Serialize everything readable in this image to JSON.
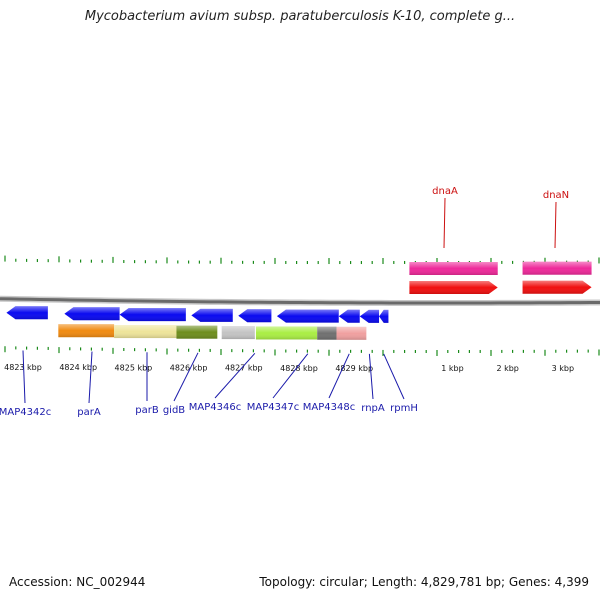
{
  "title": "Mycobacterium avium subsp. paratuberculosis K-10, complete g...",
  "footer": {
    "accession": "Accession: NC_002944",
    "summary": "Topology: circular; Length: 4,829,781 bp; Genes: 4,399"
  },
  "scale_labels": [
    {
      "label": "4823 kbp",
      "kbp": 4823
    },
    {
      "label": "4824 kbp",
      "kbp": 4824
    },
    {
      "label": "4825 kbp",
      "kbp": 4825
    },
    {
      "label": "4826 kbp",
      "kbp": 4826
    },
    {
      "label": "4827 kbp",
      "kbp": 4827
    },
    {
      "label": "4828 kbp",
      "kbp": 4828
    },
    {
      "label": "4829 kbp",
      "kbp": 4829
    },
    {
      "label": "1 kbp",
      "kbp": 4830.78
    },
    {
      "label": "2 kbp",
      "kbp": 4831.78
    },
    {
      "label": "3 kbp",
      "kbp": 4832.78
    }
  ],
  "genes_reverse": [
    {
      "label": "MAP4342c",
      "start": 4822.7,
      "end": 4823.45
    },
    {
      "label": "parA",
      "start": 4823.75,
      "end": 4824.75
    },
    {
      "label": "parB",
      "start": 4824.75,
      "end": 4825.95
    },
    {
      "label": "gidB",
      "start": 4826.05,
      "end": 4826.8
    },
    {
      "label": "MAP4346c",
      "start": 4826.9,
      "end": 4827.5
    },
    {
      "label": "MAP4347c",
      "start": 4827.6,
      "end": 4828.72
    },
    {
      "label": "MAP4348c",
      "start": 4828.72,
      "end": 4829.1
    },
    {
      "label": "rnpA",
      "start": 4829.1,
      "end": 4829.45
    },
    {
      "label": "rpmH",
      "start": 4829.45,
      "end": 4829.62
    }
  ],
  "genes_forward": [
    {
      "label": "dnaA",
      "start": 4830.0,
      "end": 4831.6
    },
    {
      "label": "dnaN",
      "start": 4832.05,
      "end": 4833.3
    }
  ],
  "feature_colors": {
    "reverse_gene": "#0a0af0",
    "forward_gene": "#f01010",
    "gene_feature_fwd": "#ee2a9a",
    "feature_bands": [
      "#f08a10",
      "#eee49a",
      "#6e8e1e",
      "#c4c4c4",
      "#aaee44",
      "#707070",
      "#f0a0a0"
    ]
  },
  "tick_color": "#1a8a1a",
  "backbone_color": "#6a6a6a"
}
